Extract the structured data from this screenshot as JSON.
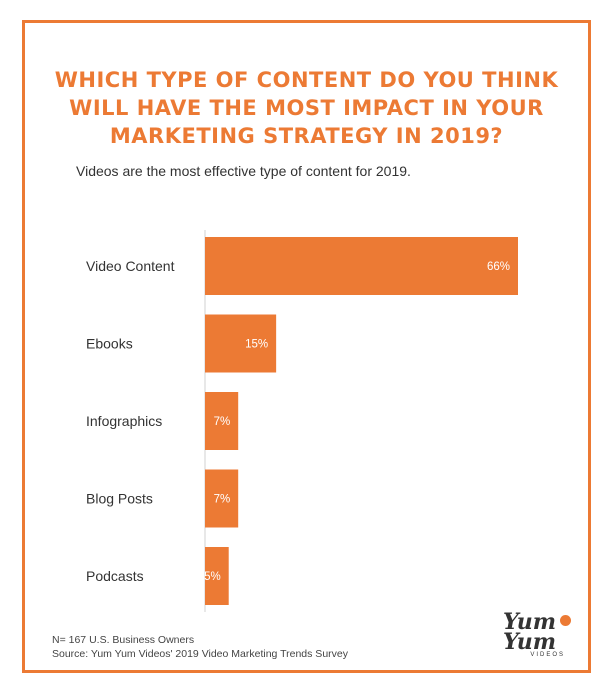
{
  "header": {
    "title": "WHICH TYPE OF CONTENT DO YOU THINK WILL HAVE THE MOST IMPACT IN YOUR MARKETING STRATEGY IN 2019?",
    "subtitle": "Videos are the most effective type of content for 2019."
  },
  "chart_data": {
    "type": "bar",
    "orientation": "horizontal",
    "categories": [
      "Video Content",
      "Ebooks",
      "Infographics",
      "Blog Posts",
      "Podcasts"
    ],
    "values": [
      66,
      15,
      7,
      7,
      5
    ],
    "value_labels": [
      "66%",
      "15%",
      "7%",
      "7%",
      "5%"
    ],
    "xlim": [
      0,
      66
    ],
    "grid": false,
    "bar_color": "#ec7a34"
  },
  "footer": {
    "sample": "N= 167 U.S. Business Owners",
    "source": "Source: Yum Yum Videos' 2019 Video Marketing Trends Survey"
  },
  "logo": {
    "name": "Yum Yum",
    "sub": "VIDEOS"
  },
  "colors": {
    "accent": "#ec7a34",
    "text": "#333333"
  }
}
